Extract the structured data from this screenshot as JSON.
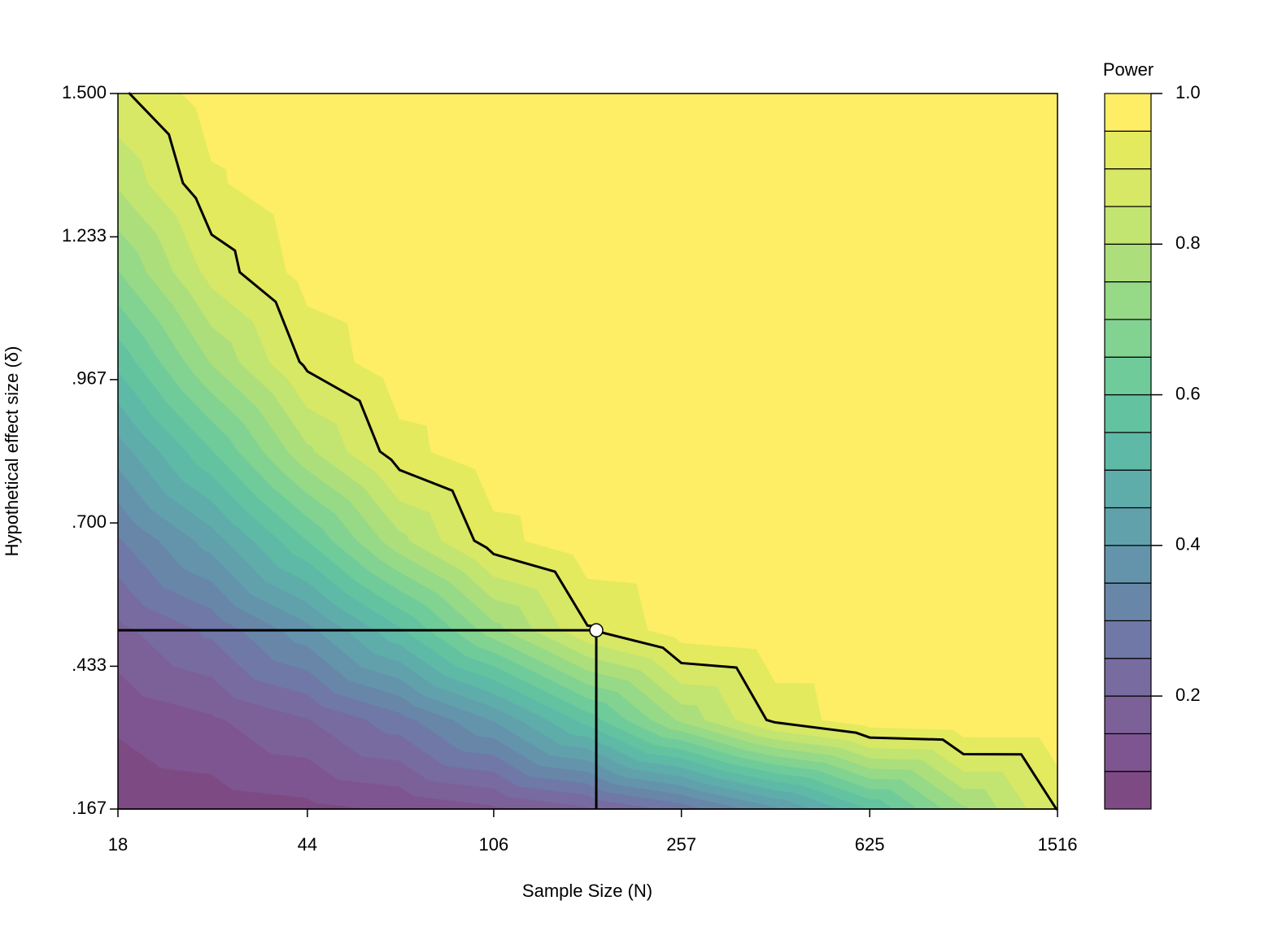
{
  "chart_data": {
    "type": "contour",
    "x_label": "Sample Size (N)",
    "y_label": "Hypothetical effect size (δ)",
    "colorbar_title": "Power",
    "x_log": true,
    "xlim": [
      18,
      1516
    ],
    "xticks": [
      18,
      44,
      106,
      257,
      625,
      1516
    ],
    "ylim": [
      0.167,
      1.5
    ],
    "yticks": [
      {
        "value": 0.167,
        "label": ".167"
      },
      {
        "value": 0.433,
        "label": ".433"
      },
      {
        "value": 0.7,
        "label": ".700"
      },
      {
        "value": 0.967,
        "label": ".967"
      },
      {
        "value": 1.233,
        "label": "1.233"
      },
      {
        "value": 1.5,
        "label": "1.500"
      }
    ],
    "x": [
      18,
      28,
      44,
      68,
      106,
      165,
      257,
      401,
      625,
      973,
      1516
    ],
    "y": [
      0.167,
      0.333,
      0.5,
      0.667,
      0.833,
      1.0,
      1.167,
      1.333,
      1.5
    ],
    "z": [
      [
        0.064,
        0.073,
        0.086,
        0.106,
        0.139,
        0.19,
        0.268,
        0.387,
        0.551,
        0.741,
        0.902
      ],
      [
        0.109,
        0.142,
        0.197,
        0.279,
        0.403,
        0.571,
        0.761,
        0.915,
        0.986,
        0.999,
        1.0
      ],
      [
        0.185,
        0.262,
        0.382,
        0.541,
        0.73,
        0.895,
        0.98,
        0.999,
        1.0,
        1.0,
        1.0
      ],
      [
        0.293,
        0.423,
        0.6,
        0.785,
        0.93,
        0.99,
        1.0,
        1.0,
        1.0,
        1.0,
        1.0
      ],
      [
        0.423,
        0.596,
        0.789,
        0.93,
        0.99,
        1.0,
        1.0,
        1.0,
        1.0,
        1.0,
        1.0
      ],
      [
        0.564,
        0.754,
        0.913,
        0.985,
        0.999,
        1.0,
        1.0,
        1.0,
        1.0,
        1.0,
        1.0
      ],
      [
        0.697,
        0.87,
        0.972,
        0.998,
        1.0,
        1.0,
        1.0,
        1.0,
        1.0,
        1.0,
        1.0
      ],
      [
        0.807,
        0.941,
        0.993,
        1.0,
        1.0,
        1.0,
        1.0,
        1.0,
        1.0,
        1.0,
        1.0
      ],
      [
        0.889,
        0.978,
        0.999,
        1.0,
        1.0,
        1.0,
        1.0,
        1.0,
        1.0,
        1.0,
        1.0
      ]
    ],
    "levels": [
      0.05,
      0.1,
      0.15,
      0.2,
      0.25,
      0.3,
      0.35,
      0.4,
      0.45,
      0.5,
      0.55,
      0.6,
      0.65,
      0.7,
      0.75,
      0.8,
      0.85,
      0.9,
      0.95,
      1.0
    ],
    "colors": [
      "#7d4a83",
      "#7e5590",
      "#7c6199",
      "#776b9f",
      "#6f78a6",
      "#6886a8",
      "#6494ab",
      "#61a1ab",
      "#5fadab",
      "#5eb9a7",
      "#63c3a0",
      "#70cb9a",
      "#82d291",
      "#96d987",
      "#acdf7c",
      "#c2e470",
      "#d7e766",
      "#e4ea5e",
      "#fdee66"
    ],
    "colorbar_ticks": [
      0.2,
      0.4,
      0.6,
      0.8,
      {
        "value": 1,
        "label": "1.0"
      }
    ],
    "target_power": 0.9,
    "highlight": {
      "x": 172,
      "y": 0.5
    }
  }
}
